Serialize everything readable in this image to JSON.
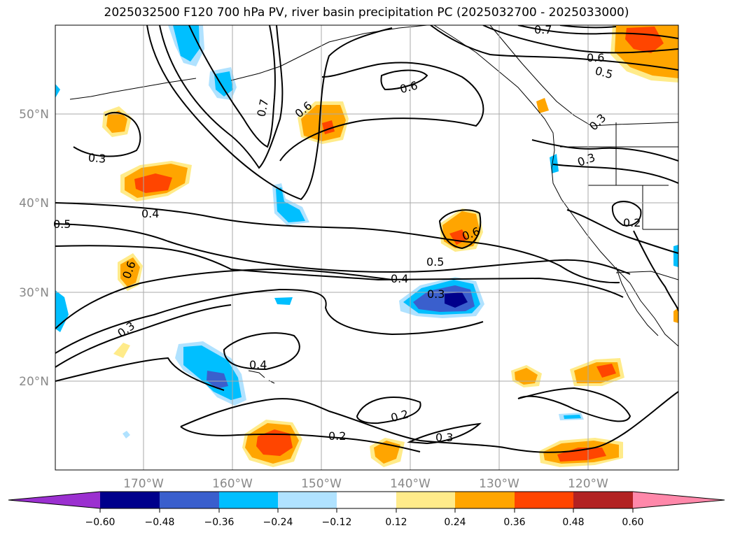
{
  "title": "2025032500 F120 700 hPa PV, river basin precipitation PC (2025032700 - 2025033000)",
  "map": {
    "lat_labels": [
      "50°N",
      "40°N",
      "30°N",
      "20°N"
    ],
    "lon_labels": [
      "170°W",
      "160°W",
      "150°W",
      "140°W",
      "130°W",
      "120°W"
    ],
    "contour_labels": [
      "0.7",
      "0.6",
      "0.6",
      "0.6",
      "0.5",
      "0.3",
      "0.3",
      "0.3",
      "0.4",
      "0.5",
      "0.2",
      "0.6",
      "0.6",
      "0.5",
      "0.4",
      "0.3",
      "0.3",
      "0.4",
      "0.2",
      "0.2",
      "0.3",
      "0.7"
    ]
  },
  "colorbar": {
    "ticks": [
      "−0.60",
      "−0.48",
      "−0.36",
      "−0.24",
      "−0.12",
      "0.12",
      "0.24",
      "0.36",
      "0.48",
      "0.60"
    ],
    "colors": [
      "#9b30d0",
      "#00008b",
      "#3a5fcd",
      "#00bfff",
      "#b0e2ff",
      "#ffffff",
      "#ffeb8a",
      "#ffa500",
      "#ff4500",
      "#b22222",
      "#ff88aa"
    ]
  },
  "shading_colors": {
    "neg_light": "#b0e2ff",
    "neg_mid": "#00bfff",
    "neg_strong": "#3a5fcd",
    "neg_max": "#00008b",
    "pos_light": "#ffeb8a",
    "pos_mid": "#ffa500",
    "pos_strong": "#ff4500"
  }
}
